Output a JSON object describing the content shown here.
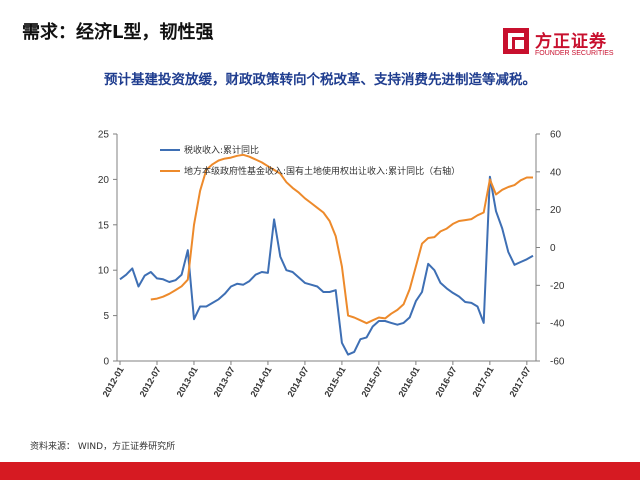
{
  "header": {
    "title": "需求：经济L型，韧性强",
    "subtitle": "预计基建投资放缓，财政政策转向个税改革、支持消费先进制造等减税。"
  },
  "logo": {
    "name_cn": "方正证券",
    "name_en": "FOUNDER SECURITIES",
    "color": "#c8102e"
  },
  "footer": {
    "source": "资料来源： WIND，方正证券研究所",
    "bar_color": "#d61a22"
  },
  "chart_data": {
    "type": "line",
    "x_labels": [
      "2012-01",
      "2012-07",
      "2013-01",
      "2013-07",
      "2014-01",
      "2014-07",
      "2015-01",
      "2015-07",
      "2016-01",
      "2016-07",
      "2017-01",
      "2017-07"
    ],
    "y_left": {
      "range": [
        0,
        25
      ],
      "ticks": [
        0,
        5,
        10,
        15,
        20,
        25
      ]
    },
    "y_right": {
      "range": [
        -60,
        60
      ],
      "ticks": [
        -60,
        -40,
        -20,
        0,
        20,
        40,
        60
      ]
    },
    "grid": false,
    "legend_position": "top",
    "series": [
      {
        "name": "税收收入:累计同比",
        "axis": "left",
        "color": "#3e6fb4",
        "points": [
          [
            "2012-01",
            9.0
          ],
          [
            "2012-02",
            9.5
          ],
          [
            "2012-03",
            10.2
          ],
          [
            "2012-04",
            8.2
          ],
          [
            "2012-05",
            9.4
          ],
          [
            "2012-06",
            9.8
          ],
          [
            "2012-07",
            9.1
          ],
          [
            "2012-08",
            9.0
          ],
          [
            "2012-09",
            8.7
          ],
          [
            "2012-10",
            8.9
          ],
          [
            "2012-11",
            9.5
          ],
          [
            "2012-12",
            12.2
          ],
          [
            "2013-01",
            4.6
          ],
          [
            "2013-02",
            6.0
          ],
          [
            "2013-03",
            6.0
          ],
          [
            "2013-04",
            6.4
          ],
          [
            "2013-05",
            6.8
          ],
          [
            "2013-06",
            7.4
          ],
          [
            "2013-07",
            8.2
          ],
          [
            "2013-08",
            8.5
          ],
          [
            "2013-09",
            8.4
          ],
          [
            "2013-10",
            8.8
          ],
          [
            "2013-11",
            9.5
          ],
          [
            "2013-12",
            9.8
          ],
          [
            "2014-01",
            9.7
          ],
          [
            "2014-02",
            15.6
          ],
          [
            "2014-03",
            11.5
          ],
          [
            "2014-04",
            10.0
          ],
          [
            "2014-05",
            9.8
          ],
          [
            "2014-06",
            9.2
          ],
          [
            "2014-07",
            8.6
          ],
          [
            "2014-08",
            8.4
          ],
          [
            "2014-09",
            8.2
          ],
          [
            "2014-10",
            7.6
          ],
          [
            "2014-11",
            7.6
          ],
          [
            "2014-12",
            7.8
          ],
          [
            "2015-01",
            2.0
          ],
          [
            "2015-02",
            0.7
          ],
          [
            "2015-03",
            1.0
          ],
          [
            "2015-04",
            2.4
          ],
          [
            "2015-05",
            2.6
          ],
          [
            "2015-06",
            3.8
          ],
          [
            "2015-07",
            4.4
          ],
          [
            "2015-08",
            4.4
          ],
          [
            "2015-09",
            4.2
          ],
          [
            "2015-10",
            4.0
          ],
          [
            "2015-11",
            4.2
          ],
          [
            "2015-12",
            4.8
          ],
          [
            "2016-01",
            6.6
          ],
          [
            "2016-02",
            7.6
          ],
          [
            "2016-03",
            10.7
          ],
          [
            "2016-04",
            10.0
          ],
          [
            "2016-05",
            8.6
          ],
          [
            "2016-06",
            8.0
          ],
          [
            "2016-07",
            7.5
          ],
          [
            "2016-08",
            7.1
          ],
          [
            "2016-09",
            6.5
          ],
          [
            "2016-10",
            6.4
          ],
          [
            "2016-11",
            6.0
          ],
          [
            "2016-12",
            4.2
          ],
          [
            "2017-01",
            20.3
          ],
          [
            "2017-02",
            16.5
          ],
          [
            "2017-03",
            14.6
          ],
          [
            "2017-04",
            12.0
          ],
          [
            "2017-05",
            10.6
          ],
          [
            "2017-06",
            10.9
          ],
          [
            "2017-07",
            11.2
          ],
          [
            "2017-08",
            11.6
          ]
        ]
      },
      {
        "name": "地方本级政府性基金收入:国有土地使用权出让收入:累计同比（右轴）",
        "axis": "right",
        "color": "#ed8a2b",
        "points": [
          [
            "2012-06",
            -27.5
          ],
          [
            "2012-07",
            -27.0
          ],
          [
            "2012-08",
            -26.0
          ],
          [
            "2012-09",
            -24.5
          ],
          [
            "2012-10",
            -22.5
          ],
          [
            "2012-11",
            -20.5
          ],
          [
            "2012-12",
            -17.0
          ],
          [
            "2013-01",
            12.0
          ],
          [
            "2013-02",
            30.0
          ],
          [
            "2013-03",
            41.0
          ],
          [
            "2013-04",
            44.0
          ],
          [
            "2013-05",
            46.0
          ],
          [
            "2013-06",
            47.0
          ],
          [
            "2013-07",
            47.5
          ],
          [
            "2013-08",
            48.5
          ],
          [
            "2013-09",
            49.0
          ],
          [
            "2013-10",
            48.0
          ],
          [
            "2013-11",
            46.5
          ],
          [
            "2013-12",
            45.0
          ],
          [
            "2014-01",
            43.0
          ],
          [
            "2014-02",
            41.0
          ],
          [
            "2014-03",
            39.0
          ],
          [
            "2014-04",
            34.5
          ],
          [
            "2014-05",
            31.5
          ],
          [
            "2014-06",
            29.0
          ],
          [
            "2014-07",
            26.0
          ],
          [
            "2014-08",
            23.5
          ],
          [
            "2014-09",
            21.0
          ],
          [
            "2014-10",
            18.5
          ],
          [
            "2014-11",
            14.0
          ],
          [
            "2014-12",
            6.0
          ],
          [
            "2015-01",
            -10.0
          ],
          [
            "2015-02",
            -36.0
          ],
          [
            "2015-03",
            -37.0
          ],
          [
            "2015-04",
            -38.5
          ],
          [
            "2015-05",
            -40.0
          ],
          [
            "2015-06",
            -38.5
          ],
          [
            "2015-07",
            -37.0
          ],
          [
            "2015-08",
            -37.5
          ],
          [
            "2015-09",
            -35.0
          ],
          [
            "2015-10",
            -33.0
          ],
          [
            "2015-11",
            -30.0
          ],
          [
            "2015-12",
            -22.0
          ],
          [
            "2016-01",
            -10.0
          ],
          [
            "2016-02",
            2.0
          ],
          [
            "2016-03",
            5.0
          ],
          [
            "2016-04",
            5.5
          ],
          [
            "2016-05",
            8.5
          ],
          [
            "2016-06",
            10.0
          ],
          [
            "2016-07",
            12.5
          ],
          [
            "2016-08",
            14.0
          ],
          [
            "2016-09",
            14.5
          ],
          [
            "2016-10",
            15.0
          ],
          [
            "2016-11",
            17.0
          ],
          [
            "2016-12",
            18.5
          ],
          [
            "2017-01",
            36.0
          ],
          [
            "2017-02",
            28.0
          ],
          [
            "2017-03",
            30.5
          ],
          [
            "2017-04",
            32.0
          ],
          [
            "2017-05",
            33.0
          ],
          [
            "2017-06",
            35.5
          ],
          [
            "2017-07",
            37.0
          ],
          [
            "2017-08",
            37.0
          ]
        ]
      }
    ]
  }
}
